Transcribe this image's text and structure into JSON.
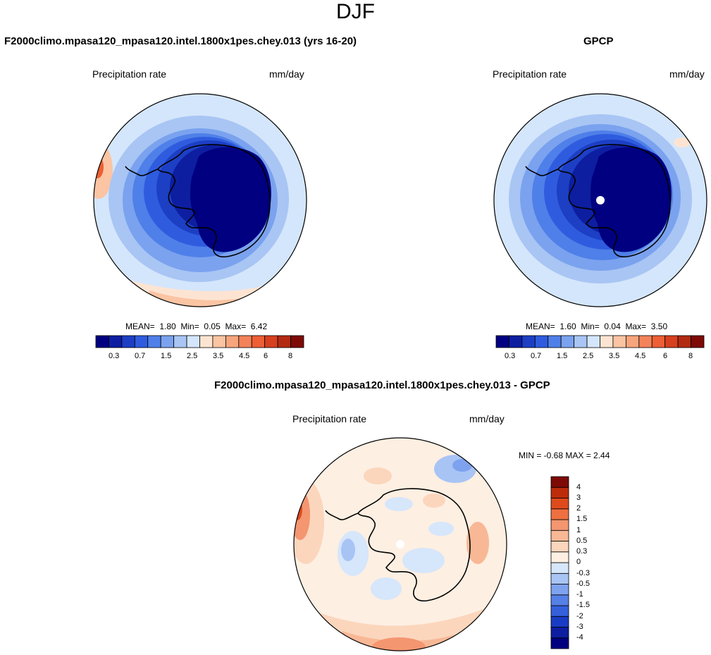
{
  "season": "DJF",
  "colors": {
    "map_levels": [
      "#000080",
      "#0d1ea0",
      "#1c3fc4",
      "#2f5cdf",
      "#4f7fe8",
      "#7aa2ee",
      "#a8c5f4",
      "#d4e6fb",
      "#fde4d2",
      "#fbc4a3",
      "#f7a57d",
      "#f38359",
      "#ed5f34",
      "#d6401f",
      "#b22a12",
      "#7d0a06"
    ],
    "diff_levels": [
      "#000080",
      "#0d1ea0",
      "#1a3cc4",
      "#3560dc",
      "#5580e6",
      "#7ea2ee",
      "#a8c4f5",
      "#d6e6fb",
      "#fdefe2",
      "#fbd6bd",
      "#f8b896",
      "#f49670",
      "#ee7040",
      "#dd4b1c",
      "#bd2c0a",
      "#7d0a06"
    ]
  },
  "panels": {
    "model": {
      "title": "F2000climo.mpasa120_mpasa120.intel.1800x1pes.chey.013 (yrs 16-20)",
      "variable": "Precipitation rate",
      "units": "mm/day",
      "stats": {
        "mean_label": "MEAN=",
        "mean": "1.80",
        "min_label": "Min=",
        "min": "0.05",
        "max_label": "Max=",
        "max": "6.42"
      },
      "colorbar_ticks": [
        "0.3",
        "0.7",
        "1.5",
        "2.5",
        "3.5",
        "4.5",
        "6",
        "8"
      ]
    },
    "obs": {
      "title": "GPCP",
      "variable": "Precipitation rate",
      "units": "mm/day",
      "stats": {
        "mean_label": "MEAN=",
        "mean": "1.60",
        "min_label": "Min=",
        "min": "0.04",
        "max_label": "Max=",
        "max": "3.50"
      },
      "colorbar_ticks": [
        "0.3",
        "0.7",
        "1.5",
        "2.5",
        "3.5",
        "4.5",
        "6",
        "8"
      ]
    },
    "diff": {
      "title": "F2000climo.mpasa120_mpasa120.intel.1800x1pes.chey.013 - GPCP",
      "variable": "Precipitation rate",
      "units": "mm/day",
      "minmax": "MIN =  -0.68 MAX =   2.44",
      "colorbar_ticks": [
        "4",
        "3",
        "2",
        "1.5",
        "1",
        "0.5",
        "0.3",
        "0",
        "-0.3",
        "-0.5",
        "-1",
        "-1.5",
        "-2",
        "-3",
        "-4"
      ]
    }
  }
}
